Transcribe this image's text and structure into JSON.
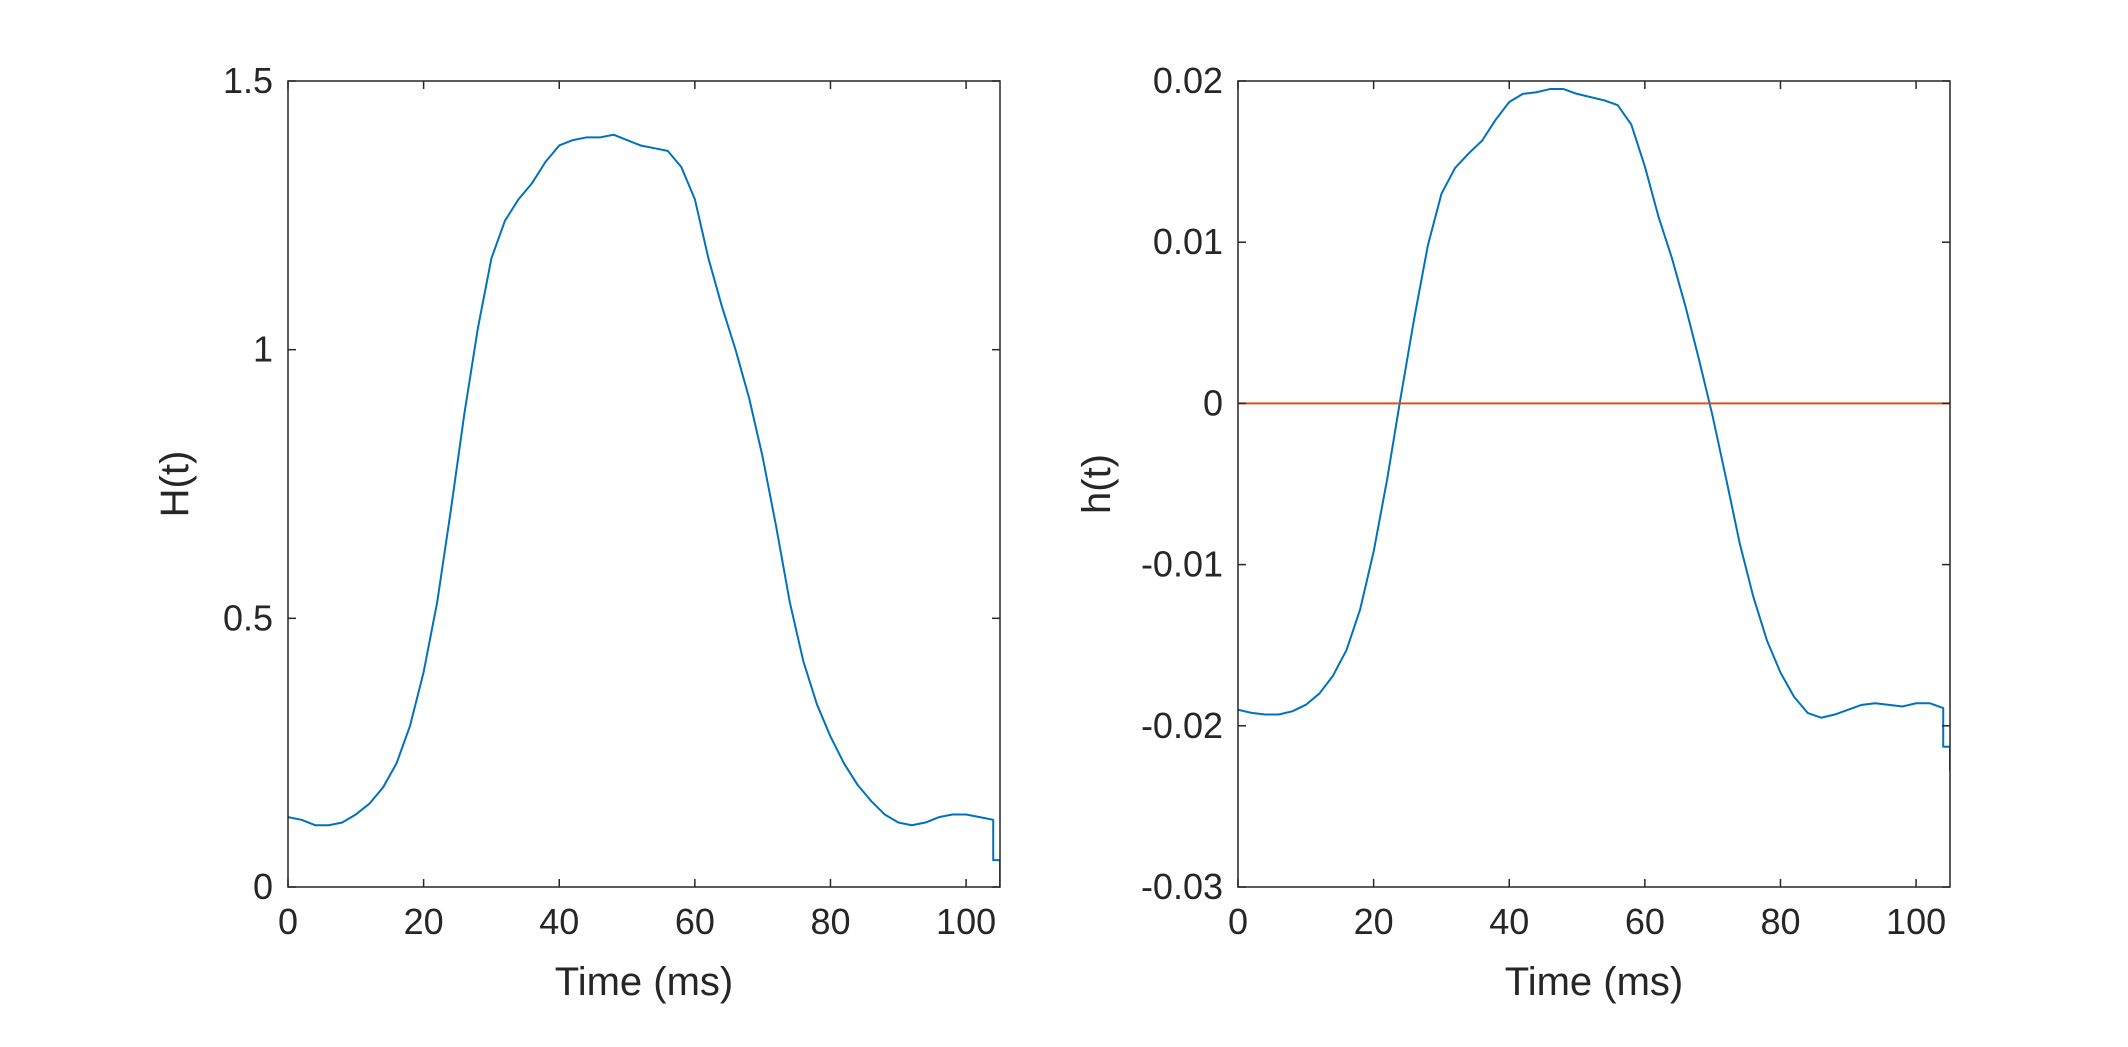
{
  "colors": {
    "blue": "#0072BD",
    "orange": "#D95319",
    "axis": "#262626"
  },
  "chart_data": [
    {
      "type": "line",
      "xlabel": "Time (ms)",
      "ylabel": "H(t)",
      "xlim": [
        0,
        105
      ],
      "ylim": [
        0,
        1.5
      ],
      "xticks": [
        0,
        20,
        40,
        60,
        80,
        100
      ],
      "yticks": [
        0,
        0.5,
        1,
        1.5
      ],
      "xtick_labels": [
        "0",
        "20",
        "40",
        "60",
        "80",
        "100"
      ],
      "ytick_labels": [
        "0",
        "0.5",
        "1",
        "1.5"
      ],
      "grid": false,
      "series": [
        {
          "color": "#0072BD",
          "x": [
            0,
            2,
            4,
            6,
            8,
            10,
            12,
            14,
            16,
            18,
            20,
            22,
            24,
            26,
            28,
            30,
            32,
            34,
            36,
            38,
            40,
            42,
            44,
            46,
            48,
            50,
            52,
            54,
            56,
            58,
            60,
            62,
            64,
            66,
            68,
            70,
            72,
            74,
            76,
            78,
            80,
            82,
            84,
            86,
            88,
            90,
            92,
            94,
            96,
            98,
            100,
            102,
            104,
            104,
            105,
            105
          ],
          "y": [
            0.13,
            0.125,
            0.115,
            0.115,
            0.12,
            0.135,
            0.155,
            0.185,
            0.23,
            0.3,
            0.4,
            0.53,
            0.7,
            0.88,
            1.04,
            1.17,
            1.24,
            1.28,
            1.31,
            1.35,
            1.38,
            1.39,
            1.395,
            1.395,
            1.4,
            1.39,
            1.38,
            1.375,
            1.37,
            1.34,
            1.28,
            1.17,
            1.08,
            1.0,
            0.91,
            0.8,
            0.67,
            0.53,
            0.42,
            0.34,
            0.28,
            0.23,
            0.19,
            0.16,
            0.135,
            0.12,
            0.115,
            0.12,
            0.13,
            0.135,
            0.135,
            0.13,
            0.125,
            0.05,
            0.05,
            0.0
          ]
        }
      ]
    },
    {
      "type": "line",
      "xlabel": "Time (ms)",
      "ylabel": "h(t)",
      "xlim": [
        0,
        105
      ],
      "ylim": [
        -0.03,
        0.02
      ],
      "xticks": [
        0,
        20,
        40,
        60,
        80,
        100
      ],
      "yticks": [
        -0.03,
        -0.02,
        -0.01,
        0,
        0.01,
        0.02
      ],
      "xtick_labels": [
        "0",
        "20",
        "40",
        "60",
        "80",
        "100"
      ],
      "ytick_labels": [
        "-0.03",
        "-0.02",
        "-0.01",
        "0",
        "0.01",
        "0.02"
      ],
      "grid": false,
      "series": [
        {
          "color": "#0072BD",
          "x": [
            0,
            2,
            4,
            6,
            8,
            10,
            12,
            14,
            16,
            18,
            20,
            22,
            24,
            26,
            28,
            30,
            32,
            34,
            36,
            38,
            40,
            42,
            44,
            46,
            48,
            50,
            52,
            54,
            56,
            58,
            60,
            62,
            64,
            66,
            68,
            70,
            72,
            74,
            76,
            78,
            80,
            82,
            84,
            86,
            88,
            90,
            92,
            94,
            96,
            98,
            100,
            102,
            104,
            104,
            105,
            105
          ],
          "y": [
            -0.019,
            -0.0192,
            -0.0193,
            -0.0193,
            -0.0191,
            -0.0187,
            -0.018,
            -0.0169,
            -0.0153,
            -0.0128,
            -0.0092,
            -0.0047,
            0.0004,
            0.0053,
            0.0098,
            0.013,
            0.0146,
            0.0155,
            0.0163,
            0.0176,
            0.0187,
            0.0192,
            0.0193,
            0.0195,
            0.0195,
            0.0192,
            0.019,
            0.0188,
            0.0185,
            0.0173,
            0.0147,
            0.0116,
            0.009,
            0.006,
            0.0027,
            -0.0008,
            -0.0047,
            -0.0087,
            -0.012,
            -0.0147,
            -0.0167,
            -0.0182,
            -0.0192,
            -0.0195,
            -0.0193,
            -0.019,
            -0.0187,
            -0.0186,
            -0.0187,
            -0.0188,
            -0.0186,
            -0.0186,
            -0.0189,
            -0.0213,
            -0.0213,
            -0.0228
          ]
        },
        {
          "color": "#D95319",
          "x": [
            0,
            105
          ],
          "y": [
            0,
            0
          ]
        }
      ]
    }
  ]
}
